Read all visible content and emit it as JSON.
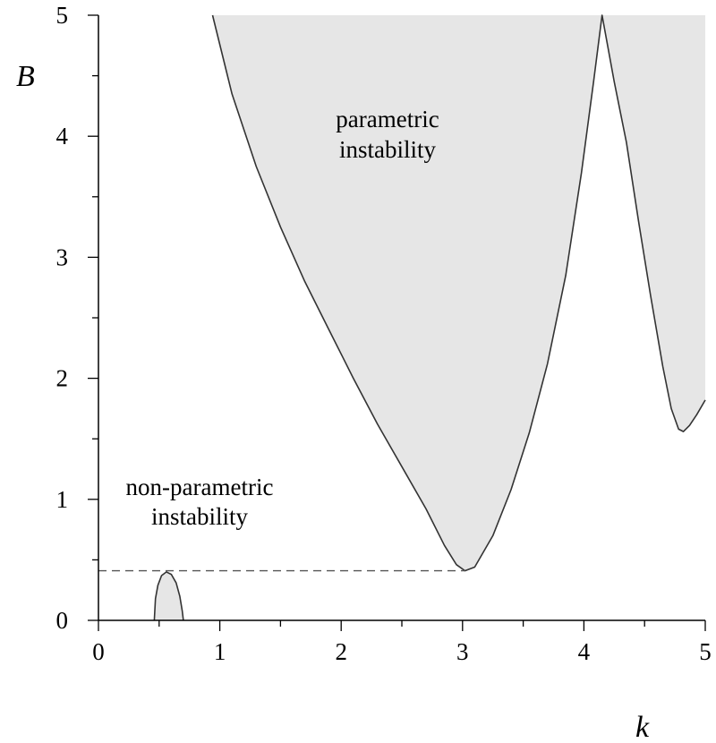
{
  "chart_data": {
    "type": "area",
    "xlabel": "k",
    "ylabel": "B",
    "xlim": [
      0,
      5
    ],
    "ylim": [
      0,
      5
    ],
    "x_ticks": [
      "0",
      "1",
      "2",
      "3",
      "4",
      "5"
    ],
    "y_ticks": [
      "0",
      "1",
      "2",
      "3",
      "4",
      "5"
    ],
    "grid": false,
    "fill_color": "#e6e6e6",
    "line_color": "#333333",
    "regions": [
      {
        "label_lines": [
          "non-parametric",
          "instability"
        ],
        "boundary": [
          [
            0.46,
            0
          ],
          [
            0.47,
            0.18
          ],
          [
            0.49,
            0.29
          ],
          [
            0.52,
            0.37
          ],
          [
            0.56,
            0.4
          ],
          [
            0.6,
            0.38
          ],
          [
            0.64,
            0.31
          ],
          [
            0.67,
            0.2
          ],
          [
            0.69,
            0.08
          ],
          [
            0.7,
            0
          ]
        ]
      },
      {
        "label_lines": [
          "parametric",
          "instability"
        ],
        "boundary": [
          [
            0.94,
            5.0
          ],
          [
            1.1,
            4.35
          ],
          [
            1.3,
            3.75
          ],
          [
            1.5,
            3.25
          ],
          [
            1.7,
            2.8
          ],
          [
            1.9,
            2.4
          ],
          [
            2.1,
            2.0
          ],
          [
            2.3,
            1.62
          ],
          [
            2.5,
            1.27
          ],
          [
            2.7,
            0.92
          ],
          [
            2.85,
            0.62
          ],
          [
            2.95,
            0.46
          ],
          [
            3.02,
            0.41
          ],
          [
            3.1,
            0.44
          ],
          [
            3.25,
            0.7
          ],
          [
            3.4,
            1.08
          ],
          [
            3.55,
            1.55
          ],
          [
            3.7,
            2.12
          ],
          [
            3.85,
            2.85
          ],
          [
            3.98,
            3.7
          ],
          [
            4.08,
            4.45
          ],
          [
            4.15,
            5.0
          ],
          [
            4.25,
            4.45
          ],
          [
            4.35,
            3.95
          ],
          [
            4.45,
            3.3
          ],
          [
            4.55,
            2.68
          ],
          [
            4.65,
            2.1
          ],
          [
            4.72,
            1.75
          ],
          [
            4.78,
            1.58
          ],
          [
            4.82,
            1.56
          ],
          [
            4.87,
            1.61
          ],
          [
            4.93,
            1.7
          ],
          [
            5.0,
            1.82
          ]
        ]
      }
    ],
    "threshold": {
      "B": 0.41,
      "x_from": 0,
      "x_to": 3.02,
      "style": "dashed"
    }
  }
}
